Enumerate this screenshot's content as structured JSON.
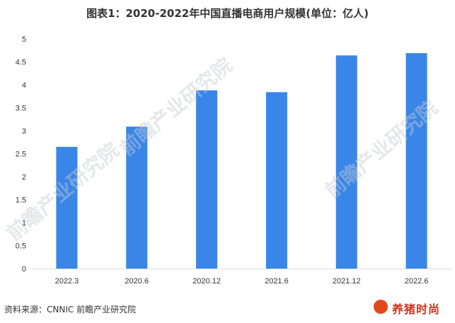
{
  "title": "图表1：2020-2022年中国直播电商用户规模(单位：亿人)",
  "source": "资料来源：CNNIC 前瞻产业研究院",
  "watermark": "前瞻产业研究院",
  "logo_text": "养猪时尚",
  "colors": {
    "bar": "#3a86e8",
    "axis": "#d9d9d9",
    "text": "#333333"
  },
  "chart_data": {
    "type": "bar",
    "title": "图表1：2020-2022年中国直播电商用户规模(单位：亿人)",
    "categories": [
      "2022.3",
      "2020.6",
      "2020.12",
      "2021.6",
      "2021.12",
      "2022.6"
    ],
    "values": [
      2.65,
      3.09,
      3.88,
      3.84,
      4.64,
      4.69
    ],
    "ylim": [
      0,
      5
    ],
    "yticks": [
      "0",
      "0.5",
      "1",
      "1.5",
      "2",
      "2.5",
      "3",
      "3.5",
      "4",
      "4.5",
      "5"
    ],
    "xlabel": "",
    "ylabel": "",
    "grid": false,
    "legend": "none"
  }
}
